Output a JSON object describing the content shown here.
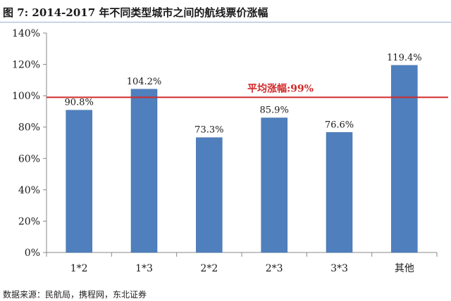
{
  "figure": {
    "title": "图 7:  2014-2017 年不同类型城市之间的航线票价涨幅",
    "source": "数据来源：民航局，携程网，东北证券"
  },
  "colors": {
    "bar": "#4f7fbd",
    "bar_edge": "#3d6aa3",
    "average_line": "#d22a2a",
    "average_label": "#d22a2a",
    "axis": "#888888",
    "text": "#1a1a1a"
  },
  "chart_data": {
    "type": "bar",
    "title": "",
    "xlabel": "",
    "ylabel": "",
    "categories": [
      "1*2",
      "1*3",
      "2*2",
      "2*3",
      "3*3",
      "其他"
    ],
    "series": [
      {
        "values": [
          90.8,
          104.2,
          73.3,
          85.9,
          76.6,
          119.4
        ]
      }
    ],
    "data_labels": [
      "90.8%",
      "104.2%",
      "73.3%",
      "85.9%",
      "76.6%",
      "119.4%"
    ],
    "ylim": [
      0,
      140
    ],
    "y_ticks": [
      0,
      20,
      40,
      60,
      80,
      100,
      120,
      140
    ],
    "y_tick_labels": [
      "0%",
      "20%",
      "40%",
      "60%",
      "80%",
      "100%",
      "120%",
      "140%"
    ],
    "grid": false,
    "legend": "none",
    "reference_line": {
      "value": 99,
      "label": "平均涨幅:99%"
    }
  }
}
